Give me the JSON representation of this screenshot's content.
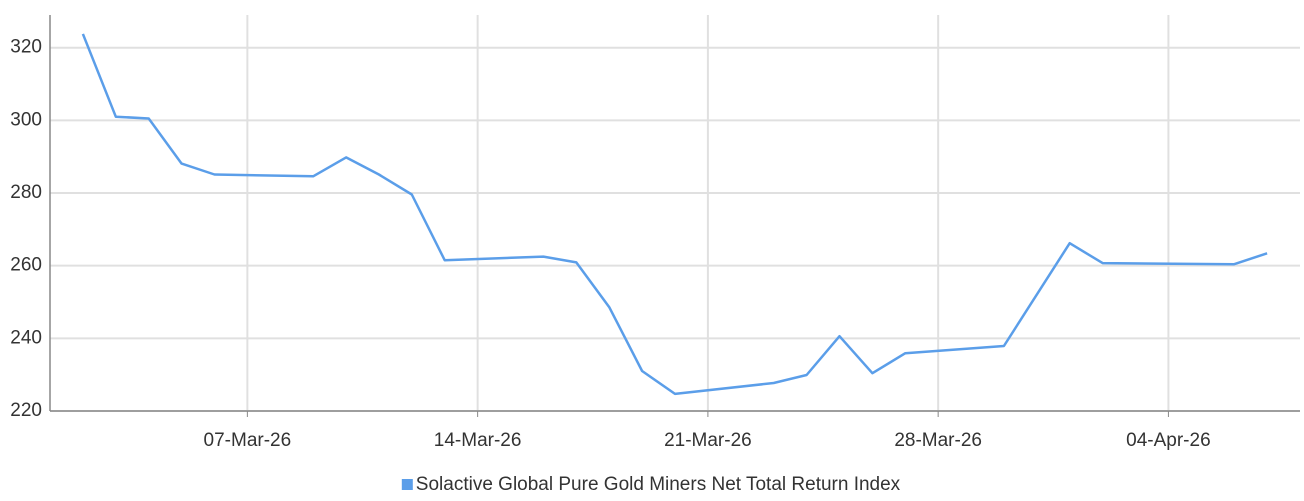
{
  "chart_data": {
    "type": "line",
    "x": [
      "2026-03-02",
      "2026-03-03",
      "2026-03-04",
      "2026-03-05",
      "2026-03-06",
      "2026-03-09",
      "2026-03-10",
      "2026-03-11",
      "2026-03-12",
      "2026-03-13",
      "2026-03-16",
      "2026-03-17",
      "2026-03-18",
      "2026-03-19",
      "2026-03-20",
      "2026-03-23",
      "2026-03-24",
      "2026-03-25",
      "2026-03-26",
      "2026-03-27",
      "2026-03-30",
      "2026-04-01",
      "2026-04-02",
      "2026-04-06",
      "2026-04-07"
    ],
    "series": [
      {
        "name": "Solactive Global Pure Gold Miners Net Total Return Index",
        "color": "#5b9ee9",
        "values": [
          323.8,
          301.0,
          300.5,
          288.1,
          285.1,
          284.6,
          289.8,
          285.1,
          279.6,
          261.5,
          262.5,
          260.9,
          248.6,
          231.0,
          224.7,
          227.7,
          229.9,
          240.6,
          230.4,
          235.9,
          237.9,
          266.2,
          260.7,
          260.4,
          263.4
        ]
      }
    ],
    "xlim": [
      "2026-03-01",
      "2026-04-08"
    ],
    "xticks": [
      {
        "value": "2026-03-07",
        "label": "07-Mar-26"
      },
      {
        "value": "2026-03-14",
        "label": "14-Mar-26"
      },
      {
        "value": "2026-03-21",
        "label": "21-Mar-26"
      },
      {
        "value": "2026-03-28",
        "label": "28-Mar-26"
      },
      {
        "value": "2026-04-04",
        "label": "04-Apr-26"
      }
    ],
    "ylim": [
      220,
      329
    ],
    "yticks": [
      220,
      240,
      260,
      280,
      300,
      320
    ],
    "grid": true,
    "legend": "bottom"
  }
}
